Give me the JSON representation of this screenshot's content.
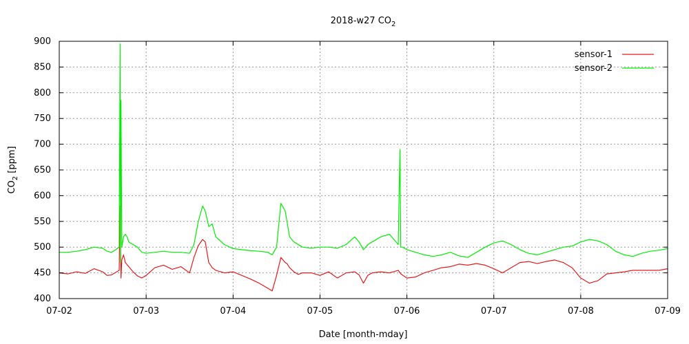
{
  "chart_data": {
    "type": "line",
    "title": "2018-w27 CO",
    "title_sub": "2",
    "xlabel": "Date [month-mday]",
    "ylabel": "CO",
    "ylabel_sub": "2",
    "ylabel_unit": " [ppm]",
    "x_ticks": [
      "07-02",
      "07-03",
      "07-04",
      "07-05",
      "07-06",
      "07-07",
      "07-08",
      "07-09"
    ],
    "xlim": [
      "07-02",
      "07-09"
    ],
    "ylim": [
      400,
      900
    ],
    "y_ticks": [
      400,
      450,
      500,
      550,
      600,
      650,
      700,
      750,
      800,
      850,
      900
    ],
    "grid": true,
    "legend": "top-right",
    "series": [
      {
        "name": "sensor-1",
        "color": "#e41a1c",
        "x": [
          0.0,
          0.1,
          0.2,
          0.3,
          0.4,
          0.5,
          0.55,
          0.6,
          0.66,
          0.69,
          0.7,
          0.71,
          0.72,
          0.74,
          0.76,
          0.8,
          0.85,
          0.9,
          0.95,
          1.0,
          1.1,
          1.2,
          1.3,
          1.4,
          1.5,
          1.55,
          1.6,
          1.65,
          1.68,
          1.72,
          1.76,
          1.8,
          1.9,
          2.0,
          2.1,
          2.2,
          2.3,
          2.4,
          2.45,
          2.5,
          2.55,
          2.6,
          2.62,
          2.65,
          2.7,
          2.75,
          2.8,
          2.9,
          3.0,
          3.1,
          3.2,
          3.3,
          3.4,
          3.45,
          3.5,
          3.55,
          3.6,
          3.7,
          3.8,
          3.9,
          3.93,
          4.0,
          4.1,
          4.2,
          4.3,
          4.4,
          4.5,
          4.6,
          4.7,
          4.8,
          4.9,
          5.0,
          5.1,
          5.2,
          5.3,
          5.4,
          5.5,
          5.6,
          5.7,
          5.8,
          5.9,
          6.0,
          6.1,
          6.2,
          6.3,
          6.4,
          6.5,
          6.6,
          6.7,
          6.8,
          6.9,
          7.0
        ],
        "y": [
          450,
          448,
          452,
          449,
          458,
          452,
          445,
          446,
          452,
          455,
          580,
          440,
          475,
          485,
          470,
          462,
          452,
          444,
          440,
          445,
          460,
          465,
          457,
          462,
          450,
          480,
          503,
          515,
          510,
          470,
          460,
          455,
          450,
          452,
          445,
          438,
          430,
          420,
          415,
          445,
          480,
          470,
          468,
          460,
          452,
          447,
          450,
          450,
          445,
          452,
          440,
          450,
          452,
          446,
          430,
          445,
          450,
          452,
          450,
          455,
          448,
          440,
          442,
          450,
          455,
          460,
          462,
          467,
          465,
          468,
          465,
          458,
          450,
          460,
          470,
          472,
          468,
          472,
          475,
          470,
          460,
          440,
          430,
          435,
          448,
          450,
          452,
          455,
          455,
          455,
          455,
          458
        ]
      },
      {
        "name": "sensor-2",
        "color": "#00ee00",
        "x": [
          0.0,
          0.1,
          0.2,
          0.3,
          0.4,
          0.5,
          0.55,
          0.6,
          0.65,
          0.69,
          0.7,
          0.705,
          0.71,
          0.72,
          0.74,
          0.76,
          0.78,
          0.8,
          0.85,
          0.9,
          0.95,
          1.0,
          1.1,
          1.2,
          1.3,
          1.4,
          1.5,
          1.55,
          1.6,
          1.65,
          1.68,
          1.72,
          1.76,
          1.8,
          1.9,
          2.0,
          2.1,
          2.2,
          2.3,
          2.4,
          2.45,
          2.5,
          2.55,
          2.6,
          2.62,
          2.65,
          2.7,
          2.8,
          2.9,
          3.0,
          3.1,
          3.2,
          3.3,
          3.4,
          3.45,
          3.5,
          3.55,
          3.6,
          3.7,
          3.8,
          3.9,
          3.92,
          3.93,
          3.95,
          4.0,
          4.1,
          4.2,
          4.3,
          4.4,
          4.5,
          4.6,
          4.7,
          4.8,
          4.9,
          5.0,
          5.1,
          5.2,
          5.3,
          5.4,
          5.5,
          5.6,
          5.7,
          5.8,
          5.9,
          6.0,
          6.1,
          6.2,
          6.3,
          6.4,
          6.5,
          6.6,
          6.7,
          6.8,
          6.9,
          7.0
        ],
        "y": [
          490,
          490,
          492,
          495,
          500,
          498,
          492,
          490,
          495,
          500,
          895,
          470,
          785,
          500,
          520,
          525,
          520,
          510,
          505,
          500,
          490,
          488,
          490,
          492,
          490,
          490,
          488,
          505,
          550,
          580,
          570,
          540,
          545,
          520,
          505,
          497,
          495,
          493,
          492,
          490,
          485,
          500,
          585,
          570,
          550,
          520,
          510,
          500,
          498,
          500,
          500,
          498,
          505,
          520,
          510,
          495,
          505,
          510,
          520,
          525,
          505,
          690,
          500,
          500,
          495,
          490,
          485,
          482,
          485,
          490,
          483,
          480,
          490,
          500,
          508,
          512,
          505,
          495,
          488,
          485,
          490,
          495,
          500,
          502,
          510,
          515,
          512,
          505,
          492,
          485,
          482,
          488,
          492,
          494,
          497
        ]
      }
    ]
  }
}
